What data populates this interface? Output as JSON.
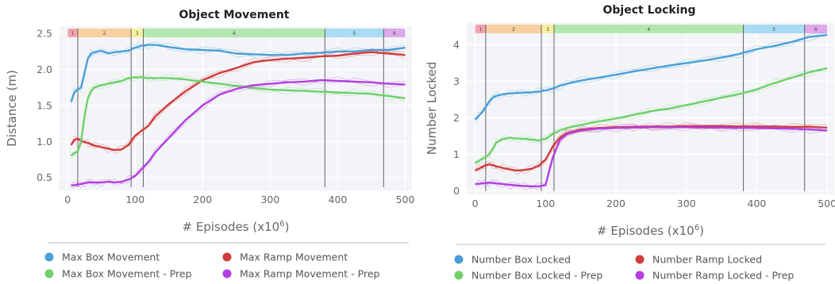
{
  "chart_data": [
    {
      "type": "line",
      "title": "Object Movement",
      "xlabel": "# Episodes (x10",
      "xlabel_sup": "6",
      "xlabel_close": ")",
      "ylabel": "Distance (m)",
      "xlim": [
        -12,
        510
      ],
      "ylim": [
        0.32,
        2.6
      ],
      "xticks": [
        0,
        100,
        200,
        300,
        400,
        500
      ],
      "yticks": [
        0.5,
        1.0,
        1.5,
        2.0,
        2.5
      ],
      "ytick_labels": [
        "0.5",
        "1.0",
        "1.5",
        "2.0",
        "2.5"
      ],
      "grid": true,
      "phase_lines": [
        15,
        94,
        112,
        381,
        468
      ],
      "phases": [
        {
          "label": "1",
          "start": 0,
          "end": 15,
          "color": "#f4a3b1"
        },
        {
          "label": "2",
          "start": 15,
          "end": 94,
          "color": "#f7cfa0"
        },
        {
          "label": "3",
          "start": 94,
          "end": 112,
          "color": "#f6ef9c"
        },
        {
          "label": "4",
          "start": 112,
          "end": 381,
          "color": "#b4e6b0"
        },
        {
          "label": "5",
          "start": 381,
          "end": 468,
          "color": "#a9dcf2"
        },
        {
          "label": "6",
          "start": 468,
          "end": 500,
          "color": "#dda8ec"
        }
      ],
      "series": [
        {
          "name": "Max Box Movement",
          "color": "#4a9fd8",
          "x": [
            5,
            10,
            15,
            20,
            25,
            30,
            35,
            40,
            50,
            60,
            70,
            80,
            90,
            100,
            110,
            120,
            130,
            150,
            175,
            200,
            225,
            250,
            275,
            300,
            325,
            350,
            375,
            400,
            425,
            450,
            475,
            500
          ],
          "y": [
            1.55,
            1.68,
            1.72,
            1.75,
            1.95,
            2.15,
            2.22,
            2.24,
            2.26,
            2.22,
            2.24,
            2.25,
            2.26,
            2.3,
            2.33,
            2.34,
            2.34,
            2.31,
            2.28,
            2.27,
            2.26,
            2.22,
            2.21,
            2.2,
            2.2,
            2.22,
            2.23,
            2.25,
            2.25,
            2.27,
            2.27,
            2.3
          ]
        },
        {
          "name": "Max Ramp Movement",
          "color": "#d23b3b",
          "x": [
            5,
            10,
            15,
            20,
            25,
            30,
            35,
            40,
            50,
            60,
            70,
            80,
            90,
            100,
            110,
            120,
            130,
            150,
            175,
            200,
            225,
            250,
            275,
            300,
            325,
            350,
            375,
            400,
            425,
            450,
            475,
            500
          ],
          "y": [
            0.95,
            1.02,
            1.04,
            1.01,
            0.99,
            0.98,
            0.96,
            0.94,
            0.92,
            0.9,
            0.88,
            0.89,
            0.95,
            1.08,
            1.15,
            1.22,
            1.35,
            1.52,
            1.7,
            1.85,
            1.95,
            2.02,
            2.1,
            2.13,
            2.15,
            2.16,
            2.18,
            2.19,
            2.22,
            2.24,
            2.22,
            2.2
          ]
        },
        {
          "name": "Max Box Movement - Prep",
          "color": "#6fd06a",
          "x": [
            5,
            10,
            15,
            20,
            25,
            30,
            35,
            40,
            50,
            60,
            70,
            80,
            90,
            100,
            110,
            120,
            130,
            150,
            175,
            200,
            225,
            250,
            275,
            300,
            325,
            350,
            375,
            400,
            425,
            450,
            475,
            500
          ],
          "y": [
            0.8,
            0.84,
            0.86,
            1.0,
            1.35,
            1.6,
            1.7,
            1.75,
            1.78,
            1.8,
            1.82,
            1.84,
            1.88,
            1.89,
            1.89,
            1.88,
            1.88,
            1.88,
            1.86,
            1.83,
            1.8,
            1.77,
            1.74,
            1.72,
            1.71,
            1.7,
            1.69,
            1.68,
            1.67,
            1.66,
            1.63,
            1.6
          ]
        },
        {
          "name": "Max Ramp Movement - Prep",
          "color": "#b23fe0",
          "x": [
            5,
            10,
            15,
            20,
            25,
            30,
            35,
            40,
            50,
            60,
            70,
            80,
            90,
            100,
            110,
            120,
            130,
            150,
            175,
            200,
            225,
            250,
            275,
            300,
            325,
            350,
            375,
            400,
            425,
            450,
            475,
            500
          ],
          "y": [
            0.39,
            0.39,
            0.4,
            0.41,
            0.42,
            0.43,
            0.43,
            0.43,
            0.43,
            0.44,
            0.43,
            0.44,
            0.47,
            0.52,
            0.62,
            0.72,
            0.85,
            1.05,
            1.3,
            1.5,
            1.65,
            1.73,
            1.78,
            1.8,
            1.82,
            1.83,
            1.85,
            1.84,
            1.83,
            1.82,
            1.8,
            1.79
          ]
        }
      ]
    },
    {
      "type": "line",
      "title": "Object Locking",
      "xlabel": "# Episodes (x10",
      "xlabel_sup": "6",
      "xlabel_close": ")",
      "ylabel": "Number Locked",
      "xlim": [
        -12,
        510
      ],
      "ylim": [
        -0.1,
        4.62
      ],
      "xticks": [
        0,
        100,
        200,
        300,
        400,
        500
      ],
      "yticks": [
        0,
        1,
        2,
        3,
        4
      ],
      "ytick_labels": [
        "0",
        "1",
        "2",
        "3",
        "4"
      ],
      "grid": true,
      "phase_lines": [
        15,
        94,
        112,
        381,
        468
      ],
      "phases": [
        {
          "label": "1",
          "start": 0,
          "end": 15,
          "color": "#f4a3b1"
        },
        {
          "label": "2",
          "start": 15,
          "end": 94,
          "color": "#f7cfa0"
        },
        {
          "label": "3",
          "start": 94,
          "end": 112,
          "color": "#f6ef9c"
        },
        {
          "label": "4",
          "start": 112,
          "end": 381,
          "color": "#b4e6b0"
        },
        {
          "label": "5",
          "start": 381,
          "end": 468,
          "color": "#a9dcf2"
        },
        {
          "label": "6",
          "start": 468,
          "end": 500,
          "color": "#dda8ec"
        }
      ],
      "series": [
        {
          "name": "Number Box Locked",
          "color": "#4a9fd8",
          "x": [
            0,
            5,
            10,
            15,
            20,
            25,
            30,
            40,
            50,
            60,
            70,
            80,
            90,
            100,
            110,
            120,
            130,
            150,
            175,
            200,
            225,
            250,
            275,
            300,
            325,
            350,
            375,
            400,
            425,
            450,
            475,
            500
          ],
          "y": [
            1.95,
            2.05,
            2.15,
            2.3,
            2.45,
            2.55,
            2.6,
            2.65,
            2.67,
            2.68,
            2.69,
            2.7,
            2.72,
            2.75,
            2.8,
            2.88,
            2.93,
            3.02,
            3.1,
            3.18,
            3.27,
            3.35,
            3.43,
            3.5,
            3.57,
            3.65,
            3.75,
            3.88,
            3.97,
            4.08,
            4.22,
            4.27
          ]
        },
        {
          "name": "Number Ramp Locked",
          "color": "#d23b3b",
          "x": [
            0,
            5,
            10,
            15,
            20,
            25,
            30,
            40,
            50,
            60,
            70,
            80,
            90,
            100,
            110,
            120,
            130,
            150,
            175,
            200,
            225,
            250,
            275,
            300,
            325,
            350,
            375,
            400,
            425,
            450,
            475,
            500
          ],
          "y": [
            0.55,
            0.6,
            0.65,
            0.7,
            0.72,
            0.7,
            0.67,
            0.62,
            0.58,
            0.55,
            0.57,
            0.6,
            0.68,
            0.85,
            1.2,
            1.45,
            1.58,
            1.68,
            1.72,
            1.74,
            1.75,
            1.76,
            1.76,
            1.77,
            1.77,
            1.77,
            1.76,
            1.76,
            1.76,
            1.75,
            1.75,
            1.73
          ]
        },
        {
          "name": "Number Box Locked - Prep",
          "color": "#6fd06a",
          "x": [
            0,
            5,
            10,
            15,
            20,
            25,
            30,
            40,
            50,
            60,
            70,
            80,
            90,
            100,
            110,
            120,
            130,
            150,
            175,
            200,
            225,
            250,
            275,
            300,
            325,
            350,
            375,
            400,
            425,
            450,
            475,
            500
          ],
          "y": [
            0.75,
            0.82,
            0.87,
            0.92,
            1.0,
            1.15,
            1.32,
            1.42,
            1.45,
            1.43,
            1.42,
            1.4,
            1.38,
            1.42,
            1.55,
            1.65,
            1.72,
            1.8,
            1.9,
            1.98,
            2.08,
            2.18,
            2.25,
            2.35,
            2.45,
            2.55,
            2.65,
            2.78,
            2.95,
            3.1,
            3.25,
            3.36
          ]
        },
        {
          "name": "Number Ramp Locked - Prep",
          "color": "#b23fe0",
          "x": [
            0,
            5,
            10,
            15,
            20,
            25,
            30,
            40,
            50,
            60,
            70,
            80,
            90,
            100,
            110,
            120,
            130,
            150,
            175,
            200,
            225,
            250,
            275,
            300,
            325,
            350,
            375,
            400,
            425,
            450,
            475,
            500
          ],
          "y": [
            0.18,
            0.19,
            0.2,
            0.21,
            0.22,
            0.21,
            0.2,
            0.18,
            0.16,
            0.14,
            0.13,
            0.12,
            0.12,
            0.15,
            0.9,
            1.38,
            1.55,
            1.65,
            1.7,
            1.72,
            1.73,
            1.74,
            1.74,
            1.74,
            1.73,
            1.73,
            1.72,
            1.72,
            1.71,
            1.7,
            1.68,
            1.65
          ]
        }
      ]
    }
  ]
}
